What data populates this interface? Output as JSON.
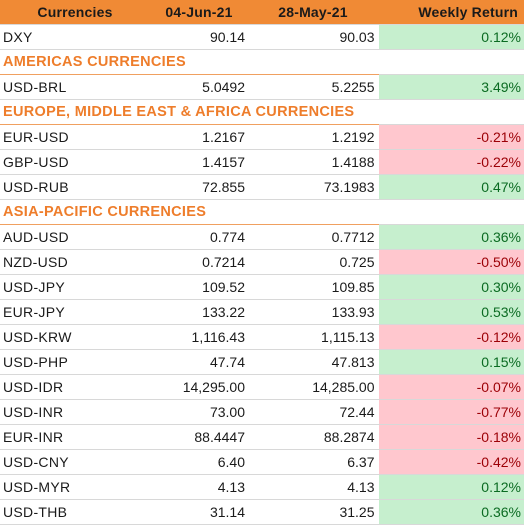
{
  "header": {
    "col_currency": "Currencies",
    "col_date1": "04-Jun-21",
    "col_date2": "28-May-21",
    "col_return": "Weekly Return"
  },
  "colors": {
    "header_bg": "#f08a35",
    "section_text": "#ee7d2b",
    "positive_bg": "#c6efce",
    "negative_bg": "#ffc7ce"
  },
  "rows": [
    {
      "type": "data",
      "name": "DXY",
      "v1": "90.14",
      "v2": "90.03",
      "ret": "0.12%",
      "sign": "pos"
    },
    {
      "type": "section",
      "title": "AMERICAS CURRENCIES"
    },
    {
      "type": "data",
      "name": "USD-BRL",
      "v1": "5.0492",
      "v2": "5.2255",
      "ret": "3.49%",
      "sign": "pos"
    },
    {
      "type": "section",
      "title": "EUROPE, MIDDLE EAST & AFRICA CURRENCIES"
    },
    {
      "type": "data",
      "name": "EUR-USD",
      "v1": "1.2167",
      "v2": "1.2192",
      "ret": "-0.21%",
      "sign": "neg"
    },
    {
      "type": "data",
      "name": "GBP-USD",
      "v1": "1.4157",
      "v2": "1.4188",
      "ret": "-0.22%",
      "sign": "neg"
    },
    {
      "type": "data",
      "name": "USD-RUB",
      "v1": "72.855",
      "v2": "73.1983",
      "ret": "0.47%",
      "sign": "pos"
    },
    {
      "type": "section",
      "title": "ASIA-PACIFIC CURRENCIES"
    },
    {
      "type": "data",
      "name": "AUD-USD",
      "v1": "0.774",
      "v2": "0.7712",
      "ret": "0.36%",
      "sign": "pos"
    },
    {
      "type": "data",
      "name": "NZD-USD",
      "v1": "0.7214",
      "v2": "0.725",
      "ret": "-0.50%",
      "sign": "neg"
    },
    {
      "type": "data",
      "name": "USD-JPY",
      "v1": "109.52",
      "v2": "109.85",
      "ret": "0.30%",
      "sign": "pos"
    },
    {
      "type": "data",
      "name": "EUR-JPY",
      "v1": "133.22",
      "v2": "133.93",
      "ret": "0.53%",
      "sign": "pos"
    },
    {
      "type": "data",
      "name": "USD-KRW",
      "v1": "1,116.43",
      "v2": "1,115.13",
      "ret": "-0.12%",
      "sign": "neg"
    },
    {
      "type": "data",
      "name": "USD-PHP",
      "v1": "47.74",
      "v2": "47.813",
      "ret": "0.15%",
      "sign": "pos"
    },
    {
      "type": "data",
      "name": "USD-IDR",
      "v1": "14,295.00",
      "v2": "14,285.00",
      "ret": "-0.07%",
      "sign": "neg"
    },
    {
      "type": "data",
      "name": "USD-INR",
      "v1": "73.00",
      "v2": "72.44",
      "ret": "-0.77%",
      "sign": "neg"
    },
    {
      "type": "data",
      "name": "EUR-INR",
      "v1": "88.4447",
      "v2": "88.2874",
      "ret": "-0.18%",
      "sign": "neg"
    },
    {
      "type": "data",
      "name": "USD-CNY",
      "v1": "6.40",
      "v2": "6.37",
      "ret": "-0.42%",
      "sign": "neg"
    },
    {
      "type": "data",
      "name": "USD-MYR",
      "v1": "4.13",
      "v2": "4.13",
      "ret": "0.12%",
      "sign": "pos"
    },
    {
      "type": "data",
      "name": "USD-THB",
      "v1": "31.14",
      "v2": "31.25",
      "ret": "0.36%",
      "sign": "pos"
    }
  ]
}
